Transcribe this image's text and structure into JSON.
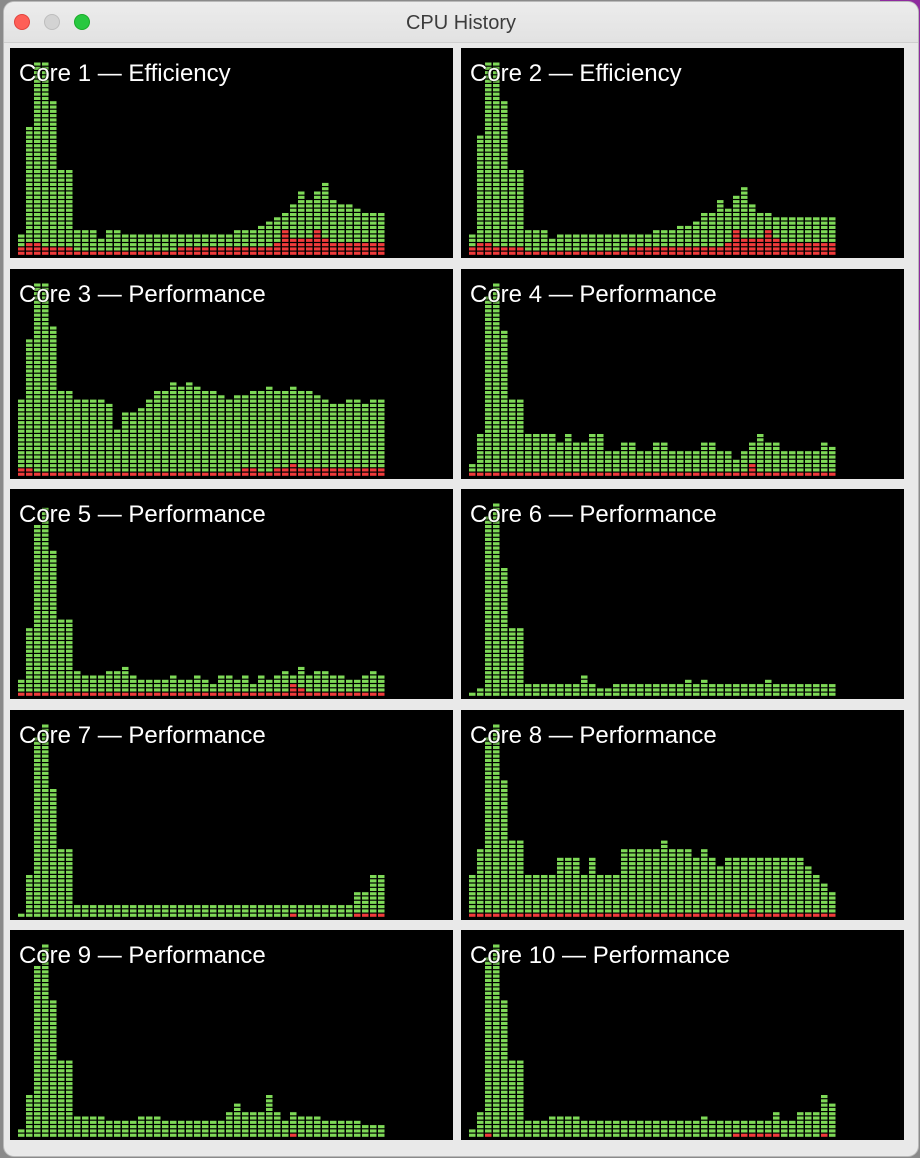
{
  "window": {
    "title": "CPU History"
  },
  "colors": {
    "user": "#7ed957",
    "system": "#f03b3b",
    "background": "#000000"
  },
  "cores": [
    {
      "label": "Core 1 — Efficiency",
      "user": [
        5,
        30,
        45,
        45,
        36,
        20,
        20,
        6,
        6,
        6,
        4,
        6,
        6,
        5,
        5,
        5,
        5,
        5,
        5,
        5,
        5,
        5,
        5,
        5,
        5,
        5,
        5,
        6,
        6,
        6,
        7,
        8,
        9,
        10,
        12,
        15,
        13,
        15,
        17,
        13,
        12,
        12,
        11,
        10,
        10,
        10
      ],
      "system": [
        2,
        3,
        3,
        2,
        2,
        2,
        2,
        1,
        1,
        1,
        1,
        1,
        1,
        1,
        1,
        1,
        1,
        1,
        1,
        1,
        2,
        2,
        2,
        2,
        2,
        2,
        2,
        2,
        2,
        2,
        2,
        2,
        3,
        6,
        4,
        4,
        4,
        6,
        4,
        3,
        3,
        3,
        3,
        3,
        3,
        3
      ]
    },
    {
      "label": "Core 2 — Efficiency",
      "user": [
        5,
        28,
        45,
        45,
        36,
        20,
        20,
        6,
        6,
        6,
        4,
        5,
        5,
        5,
        5,
        5,
        5,
        5,
        5,
        5,
        5,
        5,
        5,
        6,
        6,
        6,
        7,
        7,
        8,
        10,
        10,
        13,
        11,
        14,
        16,
        12,
        10,
        10,
        9,
        9,
        9,
        9,
        9,
        9,
        9,
        9
      ],
      "system": [
        2,
        3,
        3,
        2,
        2,
        2,
        2,
        1,
        1,
        1,
        1,
        1,
        1,
        1,
        1,
        1,
        1,
        1,
        1,
        1,
        2,
        2,
        2,
        2,
        2,
        2,
        2,
        2,
        2,
        2,
        2,
        2,
        3,
        6,
        4,
        4,
        4,
        6,
        4,
        3,
        3,
        3,
        3,
        3,
        3,
        3
      ]
    },
    {
      "label": "Core 3 — Performance",
      "user": [
        18,
        32,
        45,
        45,
        35,
        20,
        20,
        18,
        18,
        18,
        18,
        17,
        11,
        15,
        15,
        16,
        18,
        20,
        20,
        22,
        21,
        22,
        21,
        20,
        20,
        19,
        18,
        19,
        19,
        20,
        20,
        21,
        20,
        20,
        21,
        20,
        20,
        19,
        18,
        17,
        17,
        18,
        18,
        17,
        18,
        18
      ],
      "system": [
        2,
        2,
        1,
        1,
        1,
        1,
        1,
        1,
        1,
        1,
        1,
        1,
        1,
        1,
        1,
        1,
        1,
        1,
        1,
        1,
        1,
        1,
        1,
        1,
        1,
        1,
        1,
        1,
        2,
        2,
        1,
        1,
        2,
        2,
        3,
        2,
        2,
        2,
        2,
        2,
        2,
        2,
        2,
        2,
        2,
        2
      ]
    },
    {
      "label": "Core 4 — Performance",
      "user": [
        3,
        10,
        42,
        45,
        34,
        18,
        18,
        10,
        10,
        10,
        10,
        8,
        10,
        8,
        8,
        10,
        10,
        6,
        6,
        8,
        8,
        6,
        6,
        8,
        8,
        6,
        6,
        6,
        6,
        8,
        8,
        6,
        6,
        4,
        6,
        8,
        10,
        8,
        8,
        6,
        6,
        6,
        6,
        6,
        8,
        7
      ],
      "system": [
        1,
        1,
        1,
        1,
        1,
        1,
        1,
        1,
        1,
        1,
        1,
        1,
        1,
        1,
        1,
        1,
        1,
        1,
        1,
        1,
        1,
        1,
        1,
        1,
        1,
        1,
        1,
        1,
        1,
        1,
        1,
        1,
        1,
        1,
        1,
        3,
        1,
        1,
        1,
        1,
        1,
        1,
        1,
        1,
        1,
        1
      ]
    },
    {
      "label": "Core 5 — Performance",
      "user": [
        4,
        16,
        40,
        44,
        34,
        18,
        18,
        6,
        5,
        5,
        5,
        6,
        6,
        7,
        5,
        4,
        4,
        4,
        4,
        5,
        4,
        4,
        5,
        4,
        3,
        5,
        5,
        4,
        5,
        3,
        5,
        4,
        5,
        6,
        5,
        7,
        5,
        6,
        6,
        5,
        5,
        4,
        4,
        5,
        6,
        5
      ],
      "system": [
        1,
        1,
        1,
        1,
        1,
        1,
        1,
        1,
        1,
        1,
        1,
        1,
        1,
        1,
        1,
        1,
        1,
        1,
        1,
        1,
        1,
        1,
        1,
        1,
        1,
        1,
        1,
        1,
        1,
        1,
        1,
        1,
        1,
        1,
        3,
        2,
        1,
        1,
        1,
        1,
        1,
        1,
        1,
        1,
        1,
        1
      ]
    },
    {
      "label": "Core 6 — Performance",
      "user": [
        1,
        2,
        42,
        45,
        30,
        16,
        16,
        3,
        3,
        3,
        3,
        3,
        3,
        3,
        5,
        3,
        2,
        2,
        3,
        3,
        3,
        3,
        3,
        3,
        3,
        3,
        3,
        4,
        3,
        4,
        3,
        3,
        3,
        3,
        3,
        3,
        3,
        4,
        3,
        3,
        3,
        3,
        3,
        3,
        3,
        3
      ],
      "system": [
        0,
        0,
        0,
        0,
        0,
        0,
        0,
        0,
        0,
        0,
        0,
        0,
        0,
        0,
        0,
        0,
        0,
        0,
        0,
        0,
        0,
        0,
        0,
        0,
        0,
        0,
        0,
        0,
        0,
        0,
        0,
        0,
        0,
        0,
        0,
        0,
        0,
        0,
        0,
        0,
        0,
        0,
        0,
        0,
        0,
        0
      ]
    },
    {
      "label": "Core 7 — Performance",
      "user": [
        1,
        10,
        42,
        45,
        30,
        16,
        16,
        3,
        3,
        3,
        3,
        3,
        3,
        3,
        3,
        3,
        3,
        3,
        3,
        3,
        3,
        3,
        3,
        3,
        3,
        3,
        3,
        3,
        3,
        3,
        3,
        3,
        3,
        3,
        3,
        3,
        3,
        3,
        3,
        3,
        3,
        3,
        6,
        6,
        10,
        10
      ],
      "system": [
        0,
        0,
        0,
        0,
        0,
        0,
        0,
        0,
        0,
        0,
        0,
        0,
        0,
        0,
        0,
        0,
        0,
        0,
        0,
        0,
        0,
        0,
        0,
        0,
        0,
        0,
        0,
        0,
        0,
        0,
        0,
        0,
        0,
        0,
        1,
        0,
        0,
        0,
        0,
        0,
        0,
        0,
        1,
        1,
        1,
        1
      ]
    },
    {
      "label": "Core 8 — Performance",
      "user": [
        10,
        16,
        42,
        45,
        32,
        18,
        18,
        10,
        10,
        10,
        10,
        14,
        14,
        14,
        10,
        14,
        10,
        10,
        10,
        16,
        16,
        16,
        16,
        16,
        18,
        16,
        16,
        16,
        14,
        16,
        14,
        12,
        14,
        14,
        14,
        14,
        14,
        14,
        14,
        14,
        14,
        14,
        12,
        10,
        8,
        6
      ],
      "system": [
        1,
        1,
        1,
        1,
        1,
        1,
        1,
        1,
        1,
        1,
        1,
        1,
        1,
        1,
        1,
        1,
        1,
        1,
        1,
        1,
        1,
        1,
        1,
        1,
        1,
        1,
        1,
        1,
        1,
        1,
        1,
        1,
        1,
        1,
        1,
        2,
        1,
        1,
        1,
        1,
        1,
        1,
        1,
        1,
        1,
        1
      ]
    },
    {
      "label": "Core 9 — Performance",
      "user": [
        2,
        10,
        40,
        45,
        32,
        18,
        18,
        5,
        5,
        5,
        5,
        4,
        4,
        4,
        4,
        5,
        5,
        5,
        4,
        4,
        4,
        4,
        4,
        4,
        4,
        4,
        6,
        8,
        6,
        6,
        6,
        10,
        6,
        4,
        6,
        5,
        5,
        5,
        4,
        4,
        4,
        4,
        4,
        3,
        3,
        3
      ],
      "system": [
        0,
        0,
        0,
        0,
        0,
        0,
        0,
        0,
        0,
        0,
        0,
        0,
        0,
        0,
        0,
        0,
        0,
        0,
        0,
        0,
        0,
        0,
        0,
        0,
        0,
        0,
        0,
        0,
        0,
        0,
        0,
        0,
        0,
        0,
        1,
        0,
        0,
        0,
        0,
        0,
        0,
        0,
        0,
        0,
        0,
        0
      ]
    },
    {
      "label": "Core 10 — Performance",
      "user": [
        2,
        6,
        42,
        45,
        32,
        18,
        18,
        4,
        4,
        4,
        5,
        5,
        5,
        5,
        4,
        4,
        4,
        4,
        4,
        4,
        4,
        4,
        4,
        4,
        4,
        4,
        4,
        4,
        4,
        5,
        4,
        4,
        4,
        4,
        4,
        4,
        4,
        4,
        6,
        4,
        4,
        6,
        6,
        6,
        10,
        8
      ],
      "system": [
        0,
        0,
        1,
        0,
        0,
        0,
        0,
        0,
        0,
        0,
        0,
        0,
        0,
        0,
        0,
        0,
        0,
        0,
        0,
        0,
        0,
        0,
        0,
        0,
        0,
        0,
        0,
        0,
        0,
        0,
        0,
        0,
        0,
        1,
        1,
        1,
        1,
        1,
        1,
        0,
        0,
        0,
        0,
        0,
        1,
        0
      ]
    }
  ]
}
